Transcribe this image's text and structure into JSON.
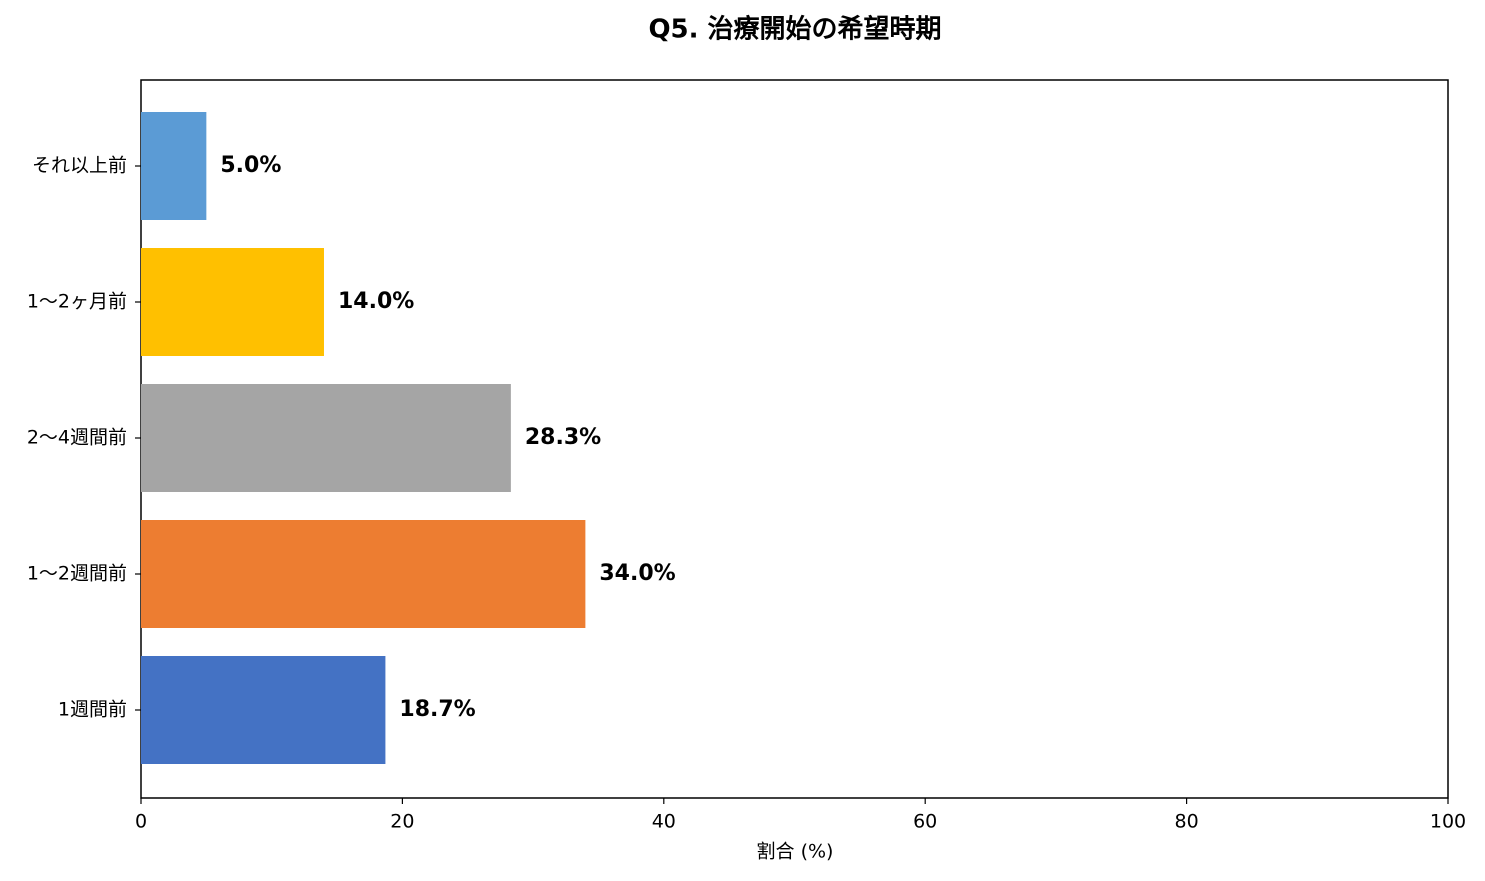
{
  "chart_data": {
    "type": "barh",
    "title": "Q5. 治療開始の希望時期",
    "xlabel": "割合 (%)",
    "categories": [
      "1週間前",
      "1〜2週間前",
      "2〜4週間前",
      "1〜2ヶ月前",
      "それ以上前"
    ],
    "values": [
      18.7,
      34.0,
      28.3,
      14.0,
      5.0
    ],
    "value_labels": [
      "18.7%",
      "34.0%",
      "28.3%",
      "14.0%",
      "5.0%"
    ],
    "colors": [
      "#4472c4",
      "#ed7d31",
      "#a5a5a5",
      "#ffc000",
      "#5b9bd5"
    ],
    "xlim": [
      0,
      100
    ],
    "xticks": [
      0,
      20,
      40,
      60,
      80,
      100
    ],
    "grid": false
  }
}
